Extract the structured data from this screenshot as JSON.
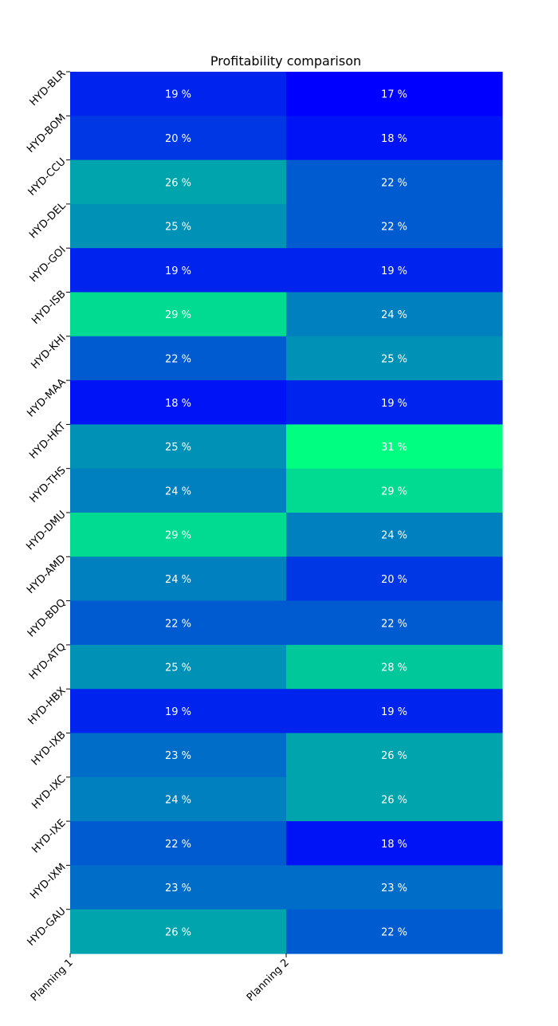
{
  "chart_data": {
    "type": "heatmap",
    "title": "Profitability comparison",
    "x_categories": [
      "Planning 1",
      "Planning 2"
    ],
    "y_categories": [
      "HYD-BLR",
      "HYD-BOM",
      "HYD-CCU",
      "HYD-DEL",
      "HYD-GOI",
      "HYD-ISB",
      "HYD-KHI",
      "HYD-MAA",
      "HYD-HKT",
      "HYD-THS",
      "HYD-DMU",
      "HYD-AMD",
      "HYD-BDQ",
      "HYD-ATQ",
      "HYD-HBX",
      "HYD-IXB",
      "HYD-IXC",
      "HYD-IXE",
      "HYD-IXM",
      "HYD-GAU"
    ],
    "values": [
      [
        19,
        17
      ],
      [
        20,
        18
      ],
      [
        26,
        22
      ],
      [
        25,
        22
      ],
      [
        19,
        19
      ],
      [
        29,
        24
      ],
      [
        22,
        25
      ],
      [
        18,
        19
      ],
      [
        25,
        31
      ],
      [
        24,
        29
      ],
      [
        29,
        24
      ],
      [
        24,
        20
      ],
      [
        22,
        22
      ],
      [
        25,
        28
      ],
      [
        19,
        19
      ],
      [
        23,
        26
      ],
      [
        24,
        26
      ],
      [
        22,
        18
      ],
      [
        23,
        23
      ],
      [
        26,
        22
      ]
    ],
    "value_suffix": " %",
    "colormap": "winter",
    "color_range": [
      17,
      31
    ],
    "colorbar": false
  }
}
